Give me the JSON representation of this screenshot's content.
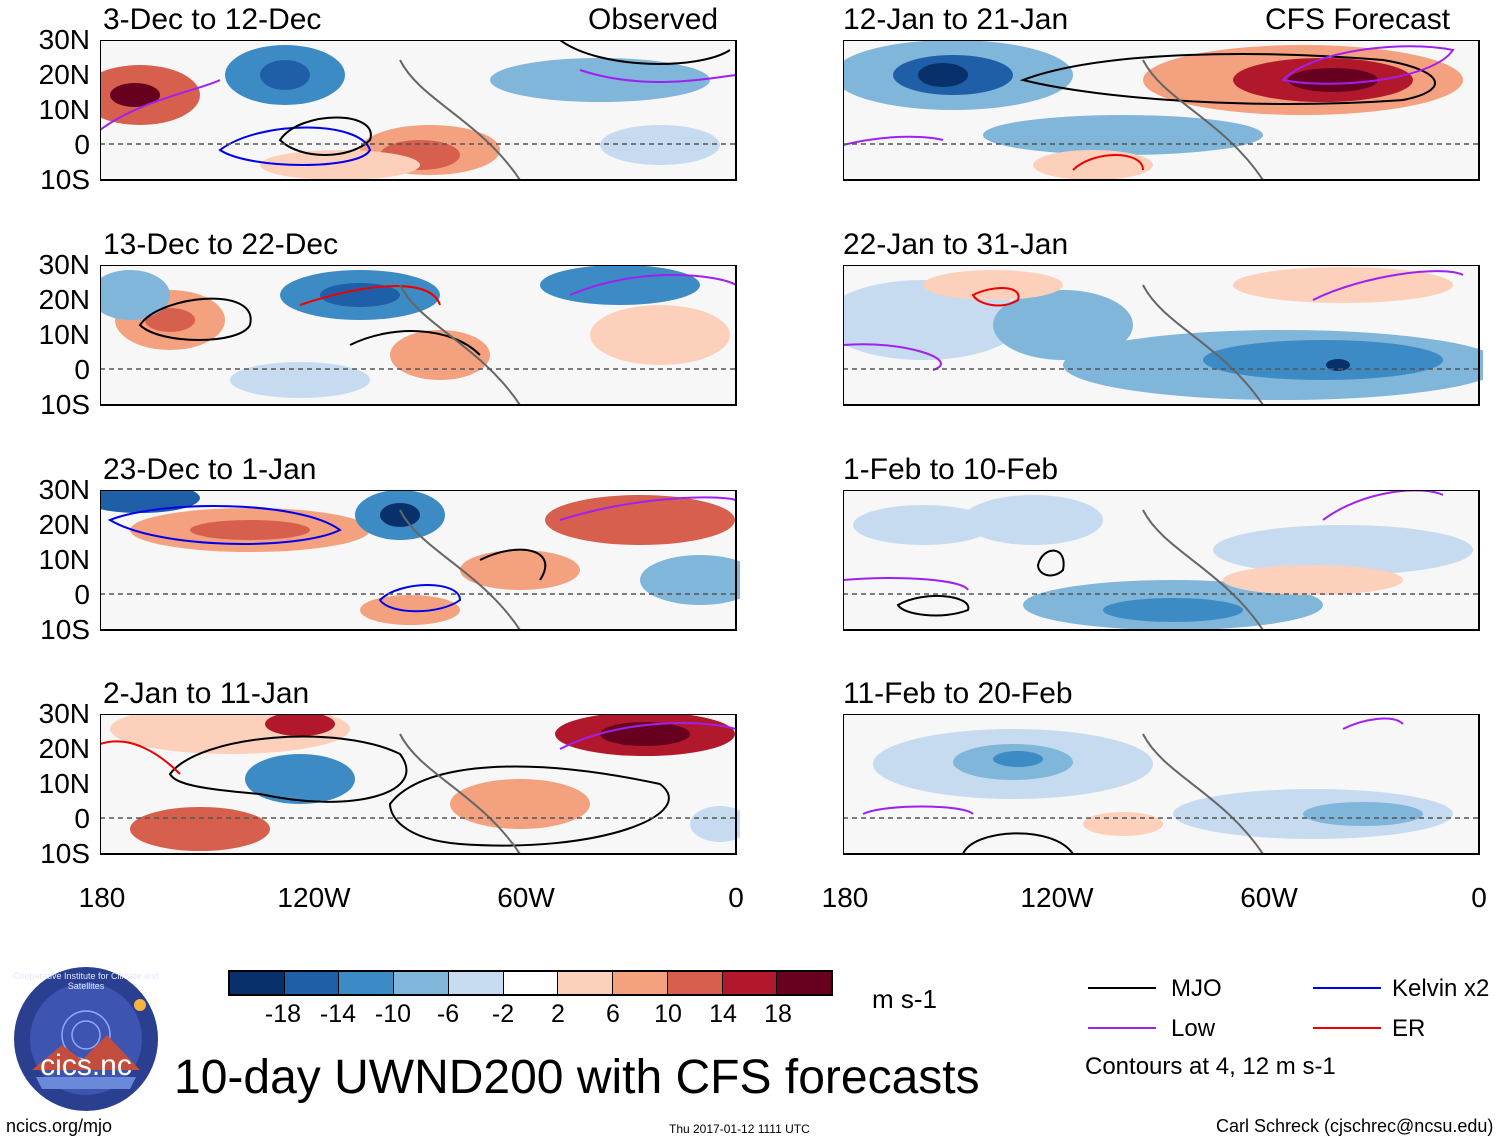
{
  "panels_left": [
    {
      "period": "3-Dec to 12-Dec",
      "tag": "Observed"
    },
    {
      "period": "13-Dec to 22-Dec",
      "tag": ""
    },
    {
      "period": "23-Dec to 1-Jan",
      "tag": ""
    },
    {
      "period": "2-Jan to 11-Jan",
      "tag": ""
    }
  ],
  "panels_right": [
    {
      "period": "12-Jan to 21-Jan",
      "tag": "CFS Forecast"
    },
    {
      "period": "22-Jan to 31-Jan",
      "tag": ""
    },
    {
      "period": "1-Feb to 10-Feb",
      "tag": ""
    },
    {
      "period": "11-Feb to 20-Feb",
      "tag": ""
    }
  ],
  "lat_labels": [
    "30N",
    "20N",
    "10N",
    "0",
    "10S"
  ],
  "lon_labels": [
    "180",
    "120W",
    "60W",
    "0"
  ],
  "colorbar": {
    "labels": [
      "-18",
      "-14",
      "-10",
      "-6",
      "-2",
      "2",
      "6",
      "10",
      "14",
      "18"
    ],
    "colors": [
      "#08306b",
      "#1f5fa8",
      "#3d8bc4",
      "#7fb6da",
      "#c6dbef",
      "#ffffff",
      "#fdd0bb",
      "#f4a17f",
      "#d6604d",
      "#b2182b",
      "#67001f"
    ],
    "units": "m s-1"
  },
  "legend": {
    "items": [
      {
        "label": "MJO",
        "color": "#000000"
      },
      {
        "label": "Kelvin x2",
        "color": "#0000ee"
      },
      {
        "label": "Low",
        "color": "#a020f0"
      },
      {
        "label": "ER",
        "color": "#ee0000"
      }
    ],
    "note": "Contours at 4, 12 m s-1"
  },
  "logo": {
    "text": "cics.nc",
    "ring_text": "Cooperative Institute for Climate and Satellites"
  },
  "main_title": "10-day UWND200 with CFS forecasts",
  "footer": {
    "left": "ncics.org/mjo",
    "center": "Thu 2017-01-12 1111 UTC",
    "right": "Carl Schreck (cjschrec@ncsu.edu)"
  }
}
